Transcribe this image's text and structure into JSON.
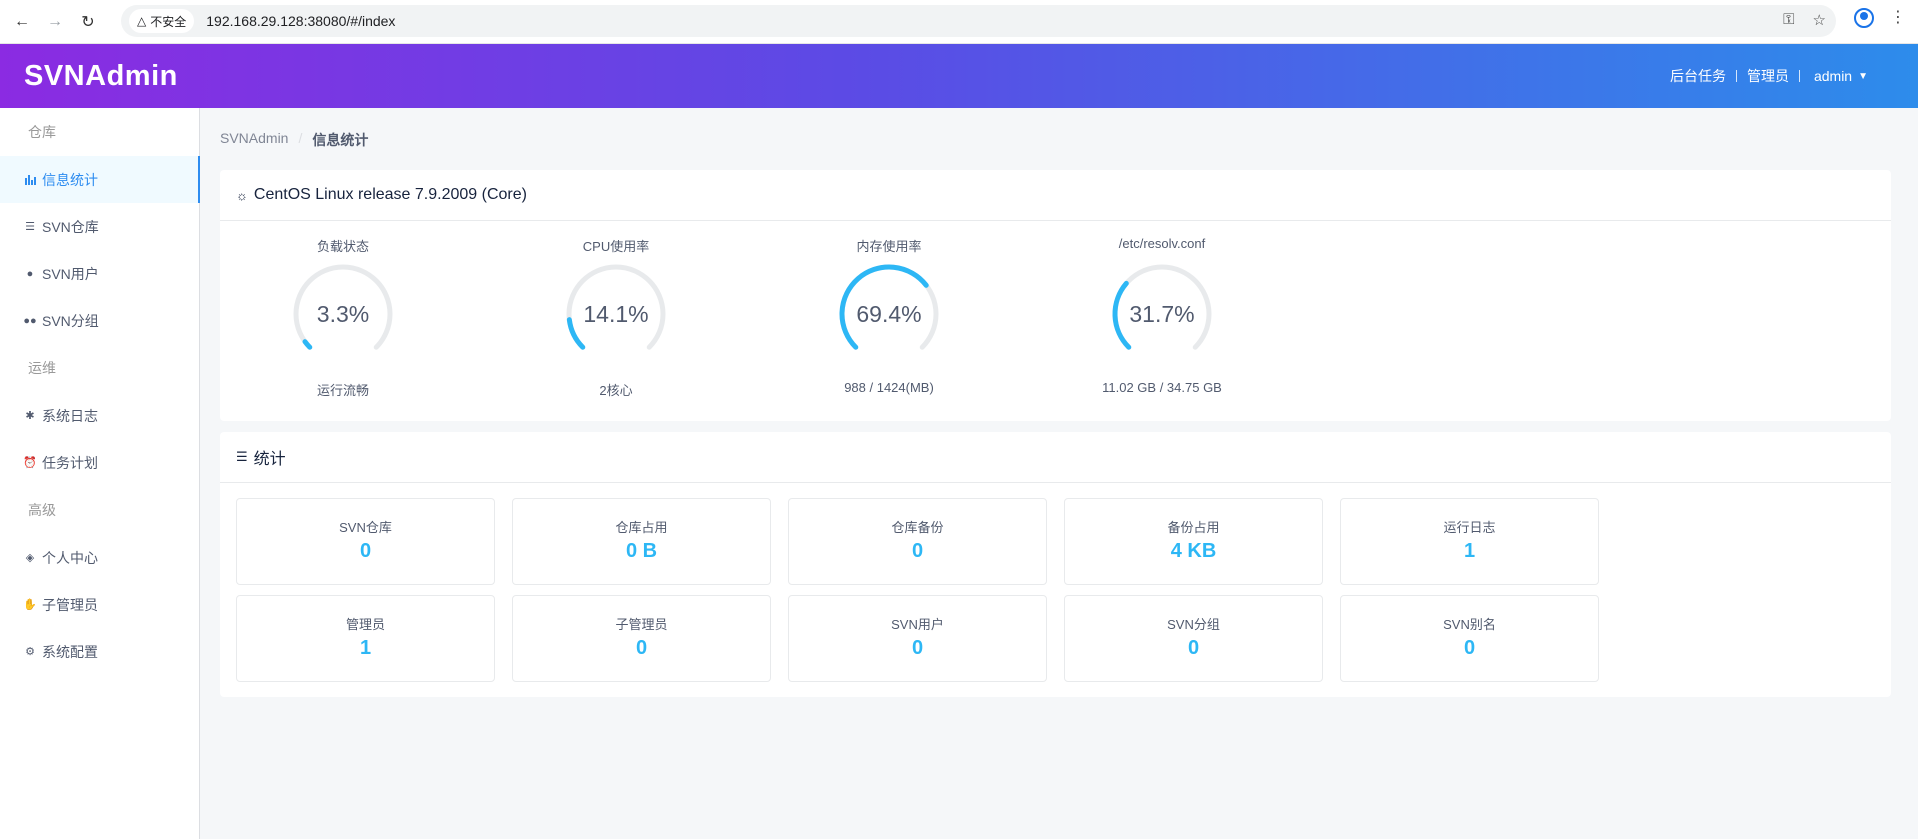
{
  "browser": {
    "security_label": "不安全",
    "url": "192.168.29.128:38080/#/index"
  },
  "header": {
    "logo": "SVNAdmin",
    "links": [
      "后台任务",
      "管理员"
    ],
    "user": "admin"
  },
  "sidebar": {
    "groups": [
      {
        "label": "仓库",
        "items": [
          {
            "label": "信息统计",
            "icon": "bar-chart-icon",
            "active": true
          },
          {
            "label": "SVN仓库",
            "icon": "layers-icon"
          },
          {
            "label": "SVN用户",
            "icon": "user-icon"
          },
          {
            "label": "SVN分组",
            "icon": "users-icon"
          }
        ]
      },
      {
        "label": "运维",
        "items": [
          {
            "label": "系统日志",
            "icon": "bug-icon"
          },
          {
            "label": "任务计划",
            "icon": "alarm-clock-icon"
          }
        ]
      },
      {
        "label": "高级",
        "items": [
          {
            "label": "个人中心",
            "icon": "cube-icon"
          },
          {
            "label": "子管理员",
            "icon": "hand-icon"
          },
          {
            "label": "系统配置",
            "icon": "gear-icon"
          }
        ]
      }
    ]
  },
  "breadcrumb": {
    "root": "SVNAdmin",
    "current": "信息统计"
  },
  "system": {
    "title": "CentOS Linux release 7.9.2009 (Core)",
    "gauges": [
      {
        "label": "负载状态",
        "value": "3.3%",
        "percent": 3.3,
        "sub": "运行流畅"
      },
      {
        "label": "CPU使用率",
        "value": "14.1%",
        "percent": 14.1,
        "sub": "2核心"
      },
      {
        "label": "内存使用率",
        "value": "69.4%",
        "percent": 69.4,
        "sub": "988 / 1424(MB)"
      },
      {
        "label": "/etc/resolv.conf",
        "value": "31.7%",
        "percent": 31.7,
        "sub": "11.02 GB / 34.75 GB"
      }
    ]
  },
  "stats": {
    "title": "统计",
    "items": [
      {
        "label": "SVN仓库",
        "value": "0"
      },
      {
        "label": "仓库占用",
        "value": "0 B"
      },
      {
        "label": "仓库备份",
        "value": "0"
      },
      {
        "label": "备份占用",
        "value": "4 KB"
      },
      {
        "label": "运行日志",
        "value": "1"
      },
      {
        "label": "管理员",
        "value": "1"
      },
      {
        "label": "子管理员",
        "value": "0"
      },
      {
        "label": "SVN用户",
        "value": "0"
      },
      {
        "label": "SVN分组",
        "value": "0"
      },
      {
        "label": "SVN别名",
        "value": "0"
      }
    ]
  },
  "colors": {
    "accent": "#2d8cf0",
    "gauge": "#2db7f5",
    "gauge_track": "#e8eaec"
  }
}
